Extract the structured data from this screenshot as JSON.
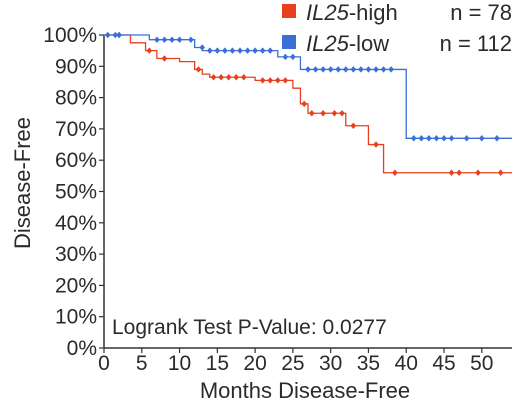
{
  "chart_data": {
    "type": "line",
    "subtype": "kaplan-meier",
    "xlabel": "Months Disease-Free",
    "ylabel": "Disease-Free",
    "xlim": [
      0,
      54
    ],
    "ylim": [
      0,
      100
    ],
    "xticks": [
      0,
      5,
      10,
      15,
      20,
      25,
      30,
      35,
      40,
      45,
      50
    ],
    "yticks": [
      0,
      10,
      20,
      30,
      40,
      50,
      60,
      70,
      80,
      90,
      100
    ],
    "ytick_labels": [
      "0%",
      "10%",
      "20%",
      "30%",
      "40%",
      "50%",
      "60%",
      "70%",
      "80%",
      "90%",
      "100%"
    ],
    "grid": false,
    "legend_position": "top-right",
    "annotation": "Logrank Test P-Value: 0.0277",
    "series": [
      {
        "legend_name_italic": "IL25",
        "legend_name_suffix": "-high",
        "n_label": "n = 78",
        "color": "#e8401c",
        "steps": [
          [
            0,
            100
          ],
          [
            3.5,
            97.5
          ],
          [
            5.5,
            95
          ],
          [
            7,
            92.5
          ],
          [
            10,
            91.5
          ],
          [
            12,
            89
          ],
          [
            13,
            87.5
          ],
          [
            14,
            86.5
          ],
          [
            20,
            85.5
          ],
          [
            25,
            83
          ],
          [
            26,
            78
          ],
          [
            27,
            75
          ],
          [
            32,
            71
          ],
          [
            35,
            65
          ],
          [
            37,
            56
          ],
          [
            54,
            56
          ]
        ],
        "censored": [
          [
            2,
            100
          ],
          [
            6,
            95
          ],
          [
            8,
            92.5
          ],
          [
            12.5,
            89
          ],
          [
            14.5,
            86.5
          ],
          [
            15.5,
            86.5
          ],
          [
            16.5,
            86.5
          ],
          [
            17.5,
            86.5
          ],
          [
            18.5,
            86.5
          ],
          [
            21,
            85.5
          ],
          [
            22,
            85.5
          ],
          [
            23,
            85.5
          ],
          [
            24,
            85.5
          ],
          [
            26.5,
            78
          ],
          [
            27.5,
            75
          ],
          [
            29,
            75
          ],
          [
            30.5,
            75
          ],
          [
            31.5,
            75
          ],
          [
            33,
            71
          ],
          [
            36,
            65
          ],
          [
            38.5,
            56
          ],
          [
            46,
            56
          ],
          [
            47,
            56
          ],
          [
            49.5,
            56
          ],
          [
            52.5,
            56
          ]
        ]
      },
      {
        "legend_name_italic": "IL25",
        "legend_name_suffix": "-low",
        "n_label": "n = 112",
        "color": "#3a6fd8",
        "steps": [
          [
            0,
            100
          ],
          [
            6,
            98.5
          ],
          [
            12,
            96
          ],
          [
            13,
            95
          ],
          [
            23,
            93
          ],
          [
            26,
            89
          ],
          [
            40,
            67
          ],
          [
            54,
            67
          ]
        ],
        "censored": [
          [
            0.5,
            100
          ],
          [
            1.5,
            100
          ],
          [
            2,
            100
          ],
          [
            7,
            98.5
          ],
          [
            8,
            98.5
          ],
          [
            9,
            98.5
          ],
          [
            10,
            98.5
          ],
          [
            11.5,
            98.5
          ],
          [
            13,
            96
          ],
          [
            14,
            95
          ],
          [
            15,
            95
          ],
          [
            16,
            95
          ],
          [
            17,
            95
          ],
          [
            18,
            95
          ],
          [
            19,
            95
          ],
          [
            20,
            95
          ],
          [
            21,
            95
          ],
          [
            22,
            95
          ],
          [
            24,
            93
          ],
          [
            25,
            93
          ],
          [
            27,
            89
          ],
          [
            28,
            89
          ],
          [
            29,
            89
          ],
          [
            30,
            89
          ],
          [
            31,
            89
          ],
          [
            32,
            89
          ],
          [
            33,
            89
          ],
          [
            34,
            89
          ],
          [
            35,
            89
          ],
          [
            36,
            89
          ],
          [
            37,
            89
          ],
          [
            38,
            89
          ],
          [
            41,
            67
          ],
          [
            42,
            67
          ],
          [
            43,
            67
          ],
          [
            44,
            67
          ],
          [
            45,
            67
          ],
          [
            46,
            67
          ],
          [
            48,
            67
          ],
          [
            50,
            67
          ],
          [
            52,
            67
          ]
        ]
      }
    ]
  }
}
